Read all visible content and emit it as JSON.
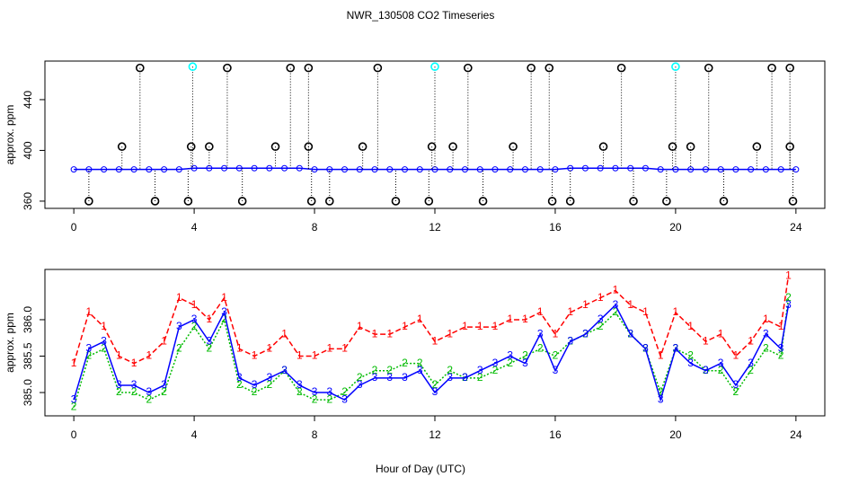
{
  "chart_data": [
    {
      "type": "scatter",
      "title": "NWR_130508  CO2 Timeseries",
      "ylabel": "approx. ppm",
      "xlim": [
        -0.96,
        24.96
      ],
      "xticks": [
        0,
        4,
        8,
        12,
        16,
        20,
        24
      ],
      "ylim": [
        354.3,
        470.4
      ],
      "yticks": [
        360,
        400,
        440
      ],
      "x": [
        0,
        0.5,
        1,
        1.5,
        2,
        2.5,
        3,
        3.5,
        4,
        4.5,
        5,
        5.5,
        6,
        6.5,
        7,
        7.5,
        8,
        8.5,
        9,
        9.5,
        10,
        10.5,
        11,
        11.5,
        12,
        12.5,
        13,
        13.5,
        14,
        14.5,
        15,
        15.5,
        16,
        16.5,
        17,
        17.5,
        18,
        18.5,
        19,
        19.5,
        20,
        20.5,
        21,
        21.5,
        22,
        22.5,
        23,
        23.5,
        24
      ],
      "series": [
        {
          "color": "#0000ff",
          "marker": "circle",
          "line": true,
          "values": [
            385,
            385,
            385,
            385,
            385,
            385,
            385,
            385,
            386,
            386,
            386,
            386,
            386,
            386,
            386,
            386,
            385,
            385,
            385,
            385,
            385,
            385,
            385,
            385,
            385,
            385,
            385,
            385,
            385,
            385,
            385,
            385,
            385,
            386,
            386,
            386,
            386,
            386,
            386,
            385,
            385,
            385,
            385,
            385,
            385,
            385,
            385,
            385,
            385
          ]
        },
        {
          "color": "#000000",
          "marker": "circle",
          "line": false,
          "x": [
            0.5,
            2.7,
            3.8,
            5.6,
            7.9,
            8.5,
            10.7,
            11.8,
            13.6,
            15.9,
            16.5,
            18.6,
            19.7,
            21.6,
            23.9,
            1.6,
            3.9,
            4.5,
            6.7,
            7.8,
            9.6,
            11.9,
            12.6,
            14.6,
            17.6,
            19.9,
            20.5,
            22.7,
            23.8,
            2.2,
            5.1,
            7.2,
            7.8,
            10.1,
            13.1,
            15.2,
            15.8,
            18.2,
            21.1,
            23.2,
            23.8
          ],
          "values": [
            360,
            360,
            360,
            360,
            360,
            360,
            360,
            360,
            360,
            360,
            360,
            360,
            360,
            360,
            360,
            403,
            403,
            403,
            403,
            403,
            403,
            403,
            403,
            403,
            403,
            403,
            403,
            403,
            403,
            465,
            465,
            465,
            465,
            465,
            465,
            465,
            465,
            465,
            465,
            465,
            465
          ]
        },
        {
          "color": "#00ffff",
          "marker": "circle",
          "line": false,
          "x": [
            3.95,
            12.0,
            20.0
          ],
          "values": [
            466,
            466,
            466
          ]
        }
      ]
    },
    {
      "type": "line",
      "xlabel": "Hour of Day (UTC)",
      "ylabel": "approx. ppm",
      "xlim": [
        -0.96,
        24.96
      ],
      "xticks": [
        0,
        4,
        8,
        12,
        16,
        20,
        24
      ],
      "ylim": [
        384.68,
        386.69
      ],
      "yticks": [
        {
          "value": 385,
          "label": "385.0"
        },
        {
          "value": 385.5,
          "label": "385.5"
        },
        {
          "value": 386,
          "label": "386.0"
        }
      ],
      "x": [
        0,
        0.5,
        1,
        1.5,
        2,
        2.5,
        3,
        3.5,
        4,
        4.5,
        5,
        5.5,
        6,
        6.5,
        7,
        7.5,
        8,
        8.5,
        9,
        9.5,
        10,
        10.5,
        11,
        11.5,
        12,
        12.5,
        13,
        13.5,
        14,
        14.5,
        15,
        15.5,
        16,
        16.5,
        17,
        17.5,
        18,
        18.5,
        19,
        19.5,
        20,
        20.5,
        21,
        21.5,
        22,
        22.5,
        23,
        23.5,
        23.75
      ],
      "series": [
        {
          "marker": "1",
          "color": "#ff0000",
          "values": [
            385.4,
            386.1,
            385.9,
            385.5,
            385.4,
            385.5,
            385.7,
            386.3,
            386.2,
            386.0,
            386.3,
            385.6,
            385.5,
            385.6,
            385.8,
            385.5,
            385.5,
            385.6,
            385.6,
            385.9,
            385.8,
            385.8,
            385.9,
            386.0,
            385.7,
            385.8,
            385.9,
            385.9,
            385.9,
            386.0,
            386.0,
            386.1,
            385.8,
            386.1,
            386.2,
            386.3,
            386.4,
            386.2,
            386.1,
            385.5,
            386.1,
            385.9,
            385.7,
            385.8,
            385.5,
            385.7,
            386.0,
            385.9,
            386.6
          ]
        },
        {
          "marker": "2",
          "color": "#00bb00",
          "values": [
            384.8,
            385.5,
            385.6,
            385.0,
            385.0,
            384.9,
            385.0,
            385.6,
            385.9,
            385.6,
            386.0,
            385.1,
            385.0,
            385.1,
            385.3,
            385.0,
            384.9,
            384.9,
            385.0,
            385.2,
            385.3,
            385.3,
            385.4,
            385.4,
            385.1,
            385.3,
            385.2,
            385.2,
            385.3,
            385.4,
            385.5,
            385.6,
            385.5,
            385.7,
            385.8,
            385.9,
            386.1,
            385.8,
            385.6,
            385.0,
            385.6,
            385.5,
            385.3,
            385.3,
            385.0,
            385.3,
            385.6,
            385.5,
            386.3
          ]
        },
        {
          "marker": "3",
          "color": "#0000ff",
          "values": [
            384.9,
            385.6,
            385.7,
            385.1,
            385.1,
            385.0,
            385.1,
            385.9,
            386.0,
            385.7,
            386.1,
            385.2,
            385.1,
            385.2,
            385.3,
            385.1,
            385.0,
            385.0,
            384.9,
            385.1,
            385.2,
            385.2,
            385.2,
            385.3,
            385.0,
            385.2,
            385.2,
            385.3,
            385.4,
            385.5,
            385.4,
            385.8,
            385.3,
            385.7,
            385.8,
            386.0,
            386.2,
            385.8,
            385.6,
            384.9,
            385.6,
            385.4,
            385.3,
            385.4,
            385.1,
            385.4,
            385.8,
            385.6,
            386.2
          ]
        }
      ]
    }
  ]
}
